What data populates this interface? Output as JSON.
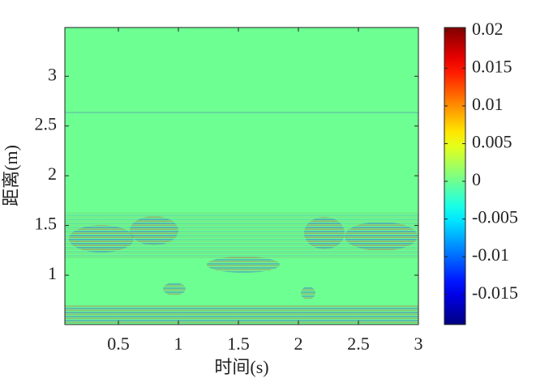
{
  "chart_data": {
    "type": "heatmap",
    "x_label": "时间(s)",
    "y_label": "距离(m)",
    "xlim": [
      0.054,
      3
    ],
    "xticks": [
      0.5,
      1,
      1.5,
      2,
      2.5,
      3
    ],
    "ylim": [
      0.504,
      3.49
    ],
    "yticks": [
      1,
      1.5,
      2,
      2.5,
      3
    ],
    "colormap": "jet",
    "clim": [
      -0.019,
      0.0204
    ],
    "colorbar_ticks": [
      0.02,
      0.015,
      0.01,
      0.005,
      0,
      -0.005,
      -0.01,
      -0.015
    ]
  }
}
